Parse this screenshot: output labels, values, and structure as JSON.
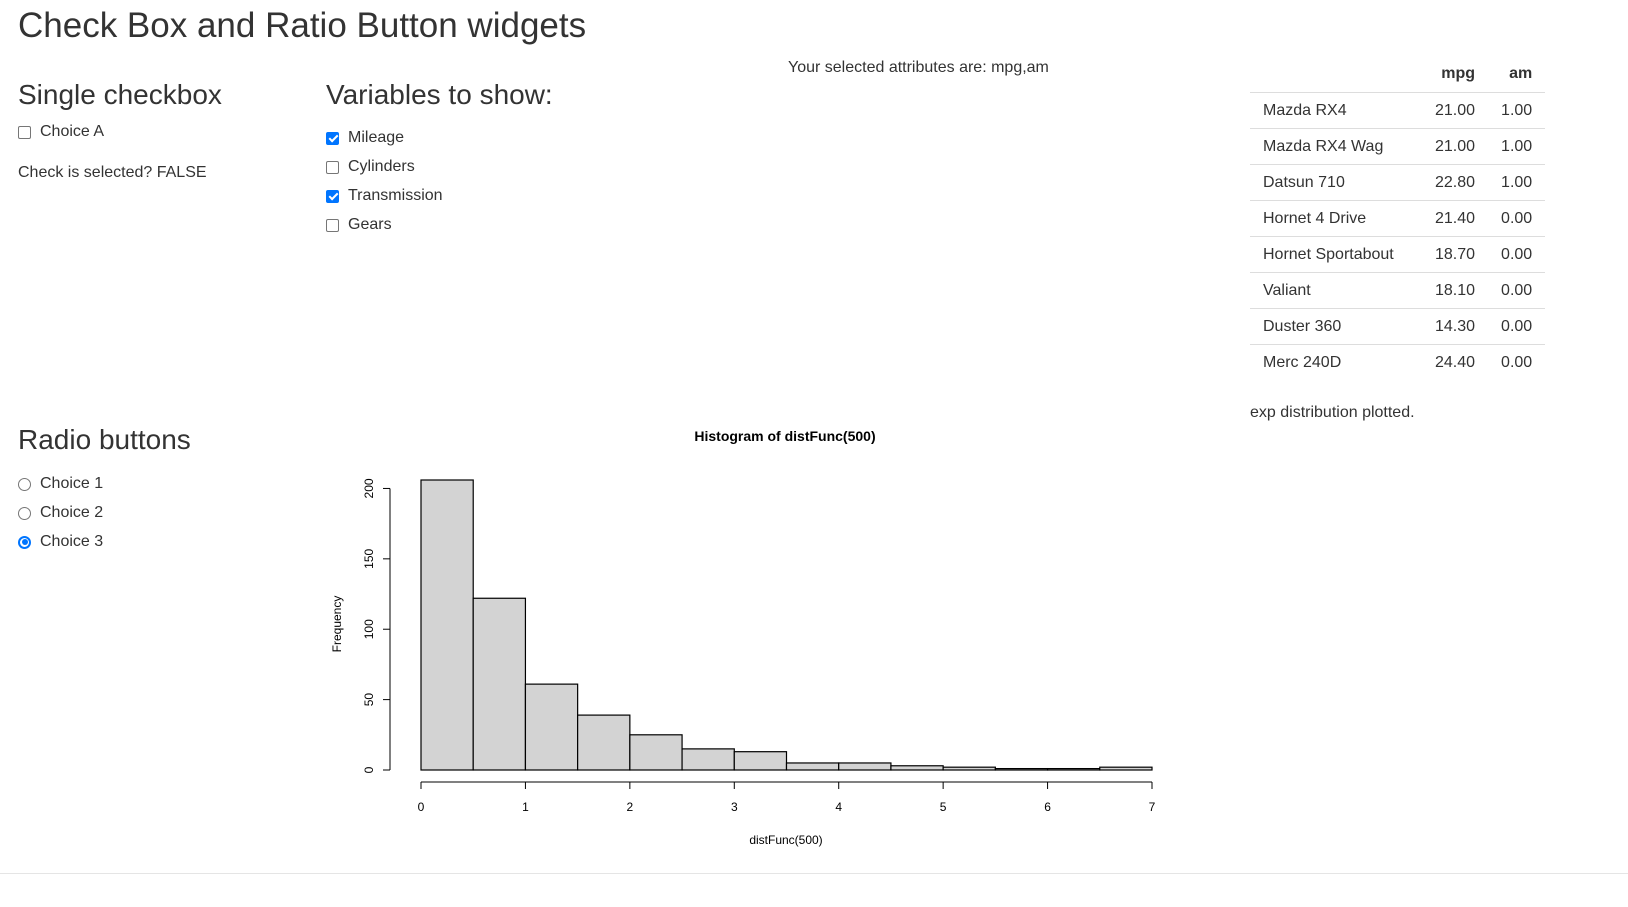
{
  "page": {
    "title": "Check Box and Ratio Button widgets"
  },
  "single_checkbox": {
    "heading": "Single checkbox",
    "option_label": "Choice A",
    "checked": false,
    "status_text": "Check is selected? FALSE"
  },
  "variables": {
    "heading": "Variables to show:",
    "options": [
      {
        "label": "Mileage",
        "checked": true
      },
      {
        "label": "Cylinders",
        "checked": false
      },
      {
        "label": "Transmission",
        "checked": true
      },
      {
        "label": "Gears",
        "checked": false
      }
    ]
  },
  "selected_text": "Your selected attributes are: mpg,am",
  "table": {
    "columns": [
      "",
      "mpg",
      "am"
    ],
    "rows": [
      [
        "Mazda RX4",
        "21.00",
        "1.00"
      ],
      [
        "Mazda RX4 Wag",
        "21.00",
        "1.00"
      ],
      [
        "Datsun 710",
        "22.80",
        "1.00"
      ],
      [
        "Hornet 4 Drive",
        "21.40",
        "0.00"
      ],
      [
        "Hornet Sportabout",
        "18.70",
        "0.00"
      ],
      [
        "Valiant",
        "18.10",
        "0.00"
      ],
      [
        "Duster 360",
        "14.30",
        "0.00"
      ],
      [
        "Merc 240D",
        "24.40",
        "0.00"
      ]
    ]
  },
  "distribution_text": "exp distribution plotted.",
  "radio": {
    "heading": "Radio buttons",
    "options": [
      {
        "label": "Choice 1",
        "checked": false
      },
      {
        "label": "Choice 2",
        "checked": false
      },
      {
        "label": "Choice 3",
        "checked": true
      }
    ]
  },
  "colors": {
    "accent": "#0075ff",
    "bar_fill": "#d3d3d3",
    "bar_stroke": "#000000"
  },
  "chart_data": {
    "type": "bar",
    "title": "Histogram of distFunc(500)",
    "xlabel": "distFunc(500)",
    "ylabel": "Frequency",
    "bin_edges": [
      0,
      0.5,
      1,
      1.5,
      2,
      2.5,
      3,
      3.5,
      4,
      4.5,
      5,
      5.5,
      6,
      6.5,
      7
    ],
    "values": [
      206,
      122,
      61,
      39,
      25,
      15,
      13,
      5,
      5,
      3,
      2,
      1,
      1,
      2
    ],
    "xlim": [
      0,
      7
    ],
    "ylim": [
      0,
      206
    ],
    "x_ticks": [
      "0",
      "1",
      "2",
      "3",
      "4",
      "5",
      "6",
      "7"
    ],
    "y_ticks": [
      "0",
      "50",
      "100",
      "150",
      "200"
    ],
    "grid": false,
    "legend": "none"
  }
}
